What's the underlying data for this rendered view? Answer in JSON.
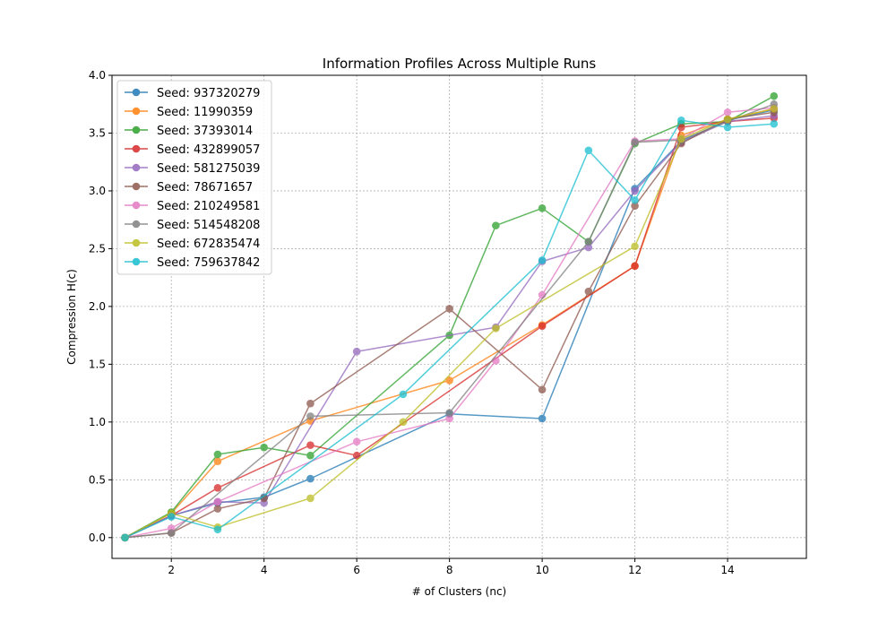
{
  "chart_data": {
    "type": "line",
    "title": "Information Profiles Across Multiple Runs",
    "xlabel": "# of Clusters (nc)",
    "ylabel": "Compression H(c)",
    "xlim": [
      0.72,
      15.7
    ],
    "ylim": [
      -0.18,
      4.0
    ],
    "xticks": [
      2,
      4,
      6,
      8,
      10,
      12,
      14
    ],
    "yticks": [
      0.0,
      0.5,
      1.0,
      1.5,
      2.0,
      2.5,
      3.0,
      3.5,
      4.0
    ],
    "grid": true,
    "legend_position": "top-left",
    "series": [
      {
        "name": "Seed: 937320279",
        "color": "#1f77b4",
        "x": [
          1,
          2,
          3,
          4,
          5,
          8,
          10,
          12,
          13,
          14,
          15
        ],
        "y": [
          0.0,
          0.19,
          0.3,
          0.35,
          0.51,
          1.07,
          1.03,
          3.02,
          3.43,
          3.61,
          3.7
        ]
      },
      {
        "name": "Seed: 11990359",
        "color": "#ff7f0e",
        "x": [
          1,
          2,
          3,
          5,
          8,
          10,
          12,
          13,
          14,
          15
        ],
        "y": [
          0.0,
          0.21,
          0.66,
          1.01,
          1.36,
          1.84,
          2.35,
          3.48,
          3.62,
          3.71
        ]
      },
      {
        "name": "Seed: 37393014",
        "color": "#2ca02c",
        "x": [
          1,
          2,
          3,
          4,
          5,
          8,
          9,
          10,
          11,
          12,
          13,
          14,
          15
        ],
        "y": [
          0.0,
          0.22,
          0.72,
          0.78,
          0.71,
          1.75,
          2.7,
          2.85,
          2.56,
          3.41,
          3.58,
          3.6,
          3.82
        ]
      },
      {
        "name": "Seed: 432899057",
        "color": "#d62728",
        "x": [
          1,
          2,
          3,
          5,
          6,
          10,
          12,
          13,
          14,
          15
        ],
        "y": [
          0.0,
          0.19,
          0.43,
          0.8,
          0.71,
          1.83,
          2.35,
          3.55,
          3.6,
          3.63
        ]
      },
      {
        "name": "Seed: 581275039",
        "color": "#9467bd",
        "x": [
          1,
          2,
          3,
          4,
          6,
          9,
          10,
          11,
          12,
          13,
          14,
          15
        ],
        "y": [
          0.0,
          0.19,
          0.31,
          0.3,
          1.61,
          1.82,
          2.39,
          2.51,
          3.0,
          3.42,
          3.6,
          3.65
        ]
      },
      {
        "name": "Seed: 78671657",
        "color": "#8c564b",
        "x": [
          1,
          2,
          3,
          4,
          5,
          8,
          10,
          11,
          12,
          13,
          14,
          15
        ],
        "y": [
          0.0,
          0.04,
          0.25,
          0.34,
          1.16,
          1.98,
          1.28,
          2.13,
          2.87,
          3.41,
          3.62,
          3.68
        ]
      },
      {
        "name": "Seed: 210249581",
        "color": "#e377c2",
        "x": [
          1,
          2,
          3,
          6,
          8,
          9,
          10,
          12,
          13,
          14,
          15
        ],
        "y": [
          0.0,
          0.08,
          0.31,
          0.83,
          1.03,
          1.53,
          2.1,
          3.43,
          3.45,
          3.68,
          3.72
        ]
      },
      {
        "name": "Seed: 514548208",
        "color": "#7f7f7f",
        "x": [
          1,
          2,
          5,
          8,
          11,
          12,
          13,
          14,
          15
        ],
        "y": [
          0.0,
          0.04,
          1.05,
          1.08,
          2.56,
          3.42,
          3.44,
          3.6,
          3.75
        ]
      },
      {
        "name": "Seed: 672835474",
        "color": "#bcbd22",
        "x": [
          1,
          2,
          3,
          5,
          7,
          9,
          12,
          13,
          14,
          15
        ],
        "y": [
          0.0,
          0.21,
          0.09,
          0.34,
          1.0,
          1.81,
          2.52,
          3.45,
          3.62,
          3.71
        ]
      },
      {
        "name": "Seed: 759637842",
        "color": "#17becf",
        "x": [
          1,
          2,
          3,
          7,
          10,
          11,
          12,
          13,
          14,
          15
        ],
        "y": [
          0.0,
          0.18,
          0.07,
          1.24,
          2.4,
          3.35,
          2.92,
          3.61,
          3.55,
          3.58
        ]
      }
    ]
  }
}
